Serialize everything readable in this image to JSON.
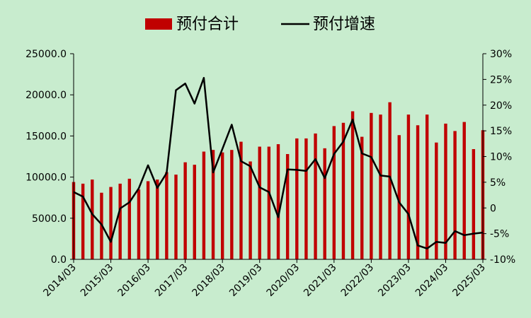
{
  "chart_data": {
    "type": "bar+line",
    "legend": {
      "placement": "top-center"
    },
    "grid": false,
    "x": [
      "2014/03",
      "2014/06",
      "2014/09",
      "2014/12",
      "2015/03",
      "2015/06",
      "2015/09",
      "2015/12",
      "2016/03",
      "2016/06",
      "2016/09",
      "2016/12",
      "2017/03",
      "2017/06",
      "2017/09",
      "2017/12",
      "2018/03",
      "2018/06",
      "2018/09",
      "2018/12",
      "2019/03",
      "2019/06",
      "2019/09",
      "2019/12",
      "2020/03",
      "2020/06",
      "2020/09",
      "2020/12",
      "2021/03",
      "2021/06",
      "2021/09",
      "2021/12",
      "2022/03",
      "2022/06",
      "2022/09",
      "2022/12",
      "2023/03",
      "2023/06",
      "2023/09",
      "2023/12",
      "2024/03",
      "2024/06",
      "2024/09",
      "2024/12",
      "2025/03"
    ],
    "x_tick_labels": [
      "2014/03",
      "2015/03",
      "2016/03",
      "2017/03",
      "2018/03",
      "2019/03",
      "2020/03",
      "2021/03",
      "2022/03",
      "2023/03",
      "2024/03",
      "2025/03"
    ],
    "series": [
      {
        "name": "预付合计",
        "kind": "bar",
        "axis": "left",
        "color": "#c00000",
        "values": [
          9400,
          9200,
          9700,
          8100,
          8800,
          9200,
          9800,
          8500,
          9500,
          9700,
          10600,
          10300,
          11800,
          11500,
          13100,
          13300,
          13000,
          13300,
          14300,
          11900,
          13700,
          13700,
          14000,
          12800,
          14700,
          14700,
          15300,
          13500,
          16200,
          16600,
          18000,
          14900,
          17800,
          17600,
          19100,
          15100,
          17600,
          16300,
          17600,
          14200,
          16500,
          15600,
          16700,
          13400,
          15700
        ]
      },
      {
        "name": "预付增速",
        "kind": "line",
        "axis": "right",
        "color": "#000000",
        "values": [
          3.1,
          2.2,
          -1.2,
          -3.2,
          -6.6,
          -0.1,
          1.1,
          3.8,
          8.3,
          3.9,
          6.8,
          22.9,
          24.2,
          20.3,
          25.3,
          6.9,
          11.5,
          16.2,
          9.1,
          8.1,
          4.0,
          3.1,
          -1.8,
          7.5,
          7.4,
          7.2,
          9.5,
          5.8,
          10.5,
          12.9,
          17.2,
          10.6,
          9.9,
          6.3,
          6.1,
          1.1,
          -1.2,
          -7.3,
          -7.9,
          -6.6,
          -6.8,
          -4.5,
          -5.3,
          -5.0,
          -4.8
        ]
      }
    ],
    "y_left": {
      "min": 0,
      "max": 25000,
      "step": 5000,
      "tick_labels": [
        "0.0",
        "5000.0",
        "10000.0",
        "15000.0",
        "20000.0",
        "25000.0"
      ]
    },
    "y_right": {
      "min": -10,
      "max": 30,
      "step": 5,
      "tick_labels": [
        "-10%",
        "-5%",
        "0",
        "5%",
        "10%",
        "15%",
        "20%",
        "25%",
        "30%"
      ]
    }
  }
}
